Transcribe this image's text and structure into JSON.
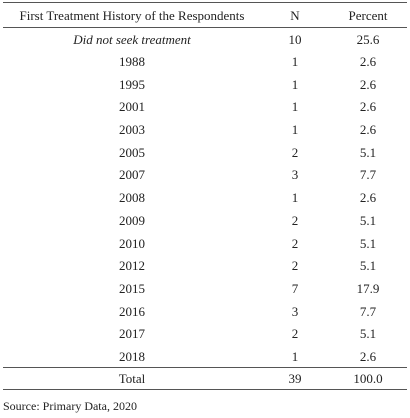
{
  "table": {
    "headers": [
      "First Treatment History of the Respondents",
      "N",
      "Percent"
    ],
    "rows": [
      {
        "label": "Did not seek treatment",
        "n": "10",
        "percent": "25.6"
      },
      {
        "label": "1988",
        "n": "1",
        "percent": "2.6"
      },
      {
        "label": "1995",
        "n": "1",
        "percent": "2.6"
      },
      {
        "label": "2001",
        "n": "1",
        "percent": "2.6"
      },
      {
        "label": "2003",
        "n": "1",
        "percent": "2.6"
      },
      {
        "label": "2005",
        "n": "2",
        "percent": "5.1"
      },
      {
        "label": "2007",
        "n": "3",
        "percent": "7.7"
      },
      {
        "label": "2008",
        "n": "1",
        "percent": "2.6"
      },
      {
        "label": "2009",
        "n": "2",
        "percent": "5.1"
      },
      {
        "label": "2010",
        "n": "2",
        "percent": "5.1"
      },
      {
        "label": "2012",
        "n": "2",
        "percent": "5.1"
      },
      {
        "label": "2015",
        "n": "7",
        "percent": "17.9"
      },
      {
        "label": "2016",
        "n": "3",
        "percent": "7.7"
      },
      {
        "label": "2017",
        "n": "2",
        "percent": "5.1"
      },
      {
        "label": "2018",
        "n": "1",
        "percent": "2.6"
      }
    ],
    "total": {
      "label": "Total",
      "n": "39",
      "percent": "100.0"
    }
  },
  "source": "Source: Primary Data, 2020"
}
